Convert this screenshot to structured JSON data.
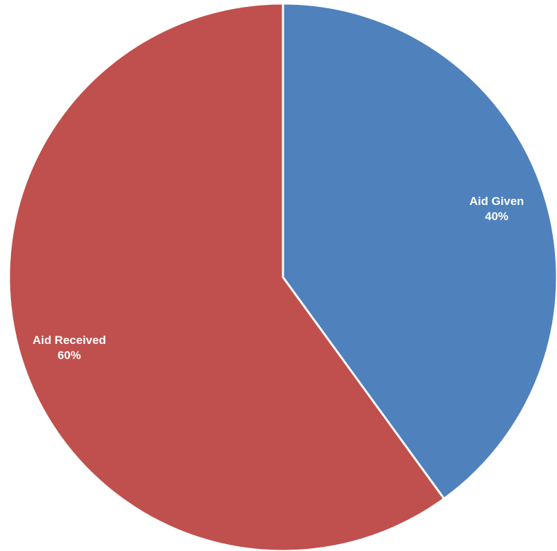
{
  "chart_data": {
    "type": "pie",
    "title": "",
    "slices": [
      {
        "label": "Aid Given",
        "value": 40,
        "value_label": "40%",
        "color": "#4f81bd"
      },
      {
        "label": "Aid Received",
        "value": 60,
        "value_label": "60%",
        "color": "#c0504d"
      }
    ],
    "start": "12 o'clock",
    "direction": "clockwise",
    "legend": "none",
    "slice_border_color": "#ffffff"
  }
}
